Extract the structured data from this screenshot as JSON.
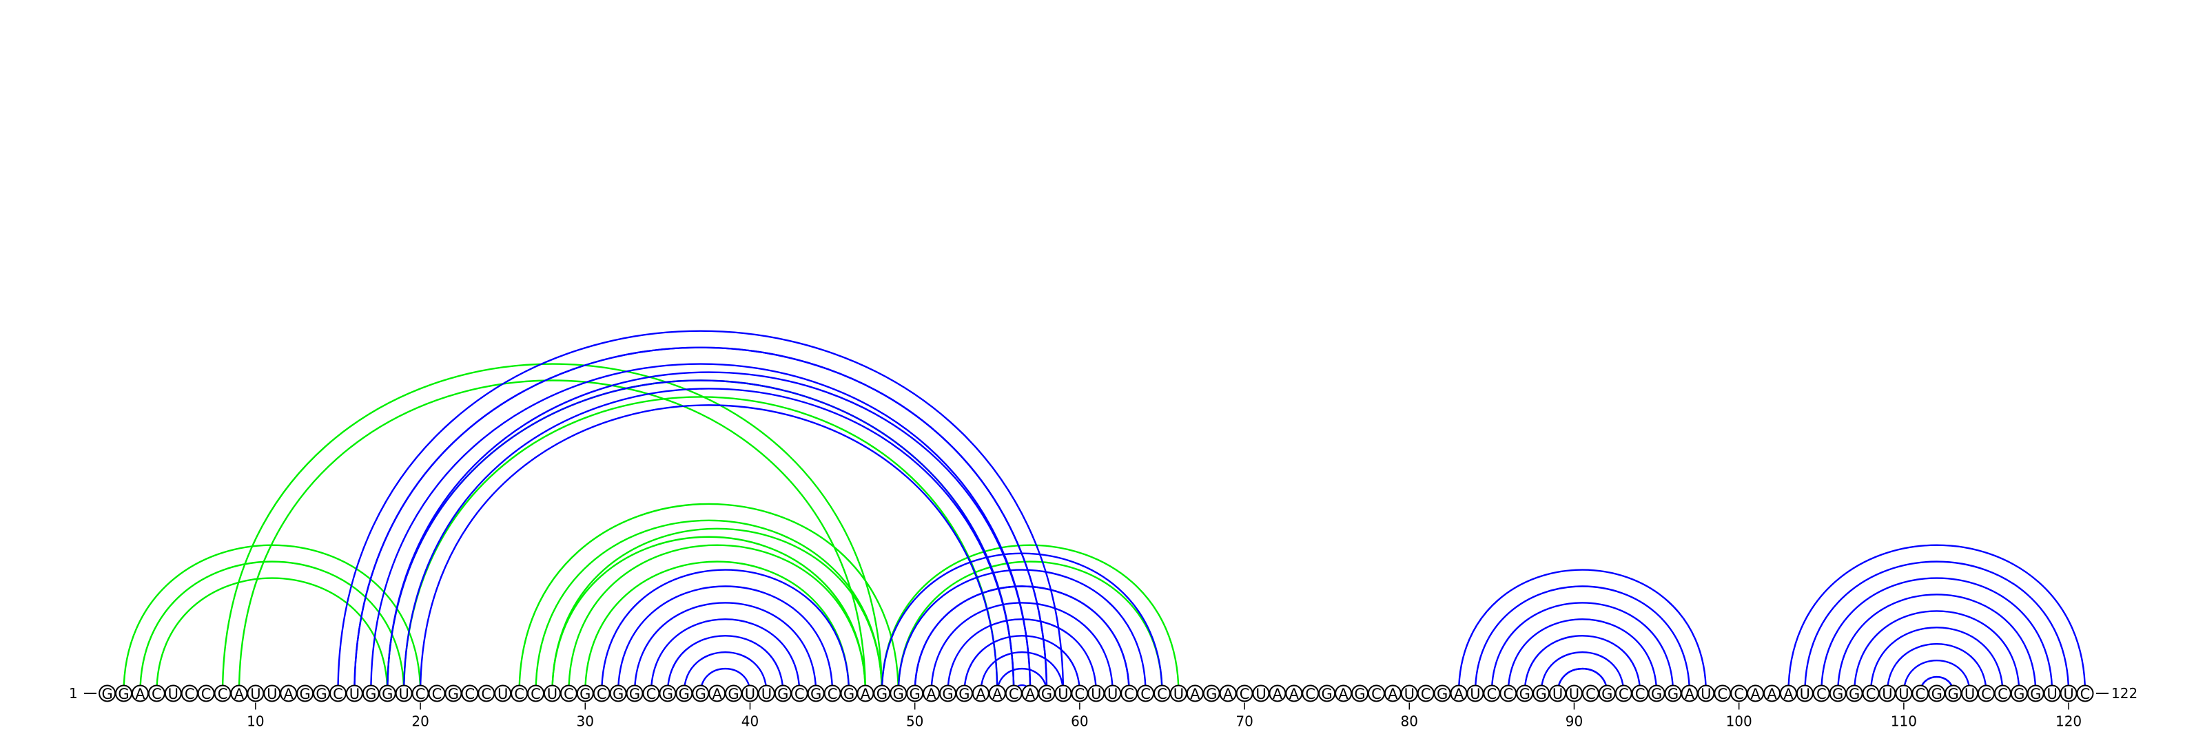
{
  "diagram": {
    "type": "rna-arc-diagram",
    "sequence": "GGACUCCCAUUAGGCUGGUCCGCCUCCUCGCGGCGGGAGUUGCGCGAGGGAGGAACAGUCUUCCCUAGACUAACGAGCAUCGAUCCGGUUCGCCGGAUCCAAAUCGGCUUCGGUCCGGUUC",
    "start_label": "1",
    "end_label": "122",
    "tick_labels": [
      "10",
      "20",
      "30",
      "40",
      "50",
      "60",
      "70",
      "80",
      "90",
      "100",
      "110",
      "120"
    ],
    "colors": {
      "structure_a": "#0000ff",
      "structure_b": "#00ee00"
    },
    "structure_a_helices": [
      {
        "i": 15,
        "j": 59,
        "n": 1
      },
      {
        "i": 16,
        "j": 58,
        "n": 2
      },
      {
        "i": 18,
        "j": 57,
        "n": 2
      },
      {
        "i": 31,
        "j": 46,
        "n": 6
      },
      {
        "i": 48,
        "j": 65,
        "n": 2
      },
      {
        "i": 50,
        "j": 63,
        "n": 5
      },
      {
        "i": 56,
        "j": 57,
        "n": 0
      },
      {
        "i": 83,
        "j": 98,
        "n": 6
      },
      {
        "i": 89,
        "j": 92,
        "n": 0
      },
      {
        "i": 103,
        "j": 121,
        "n": 1
      },
      {
        "i": 105,
        "j": 119,
        "n": 6
      },
      {
        "i": 111,
        "j": 113,
        "n": 0
      }
    ],
    "structure_b_helices": [
      {
        "i": 2,
        "j": 20,
        "n": 2
      },
      {
        "i": 8,
        "j": 48,
        "n": 1
      },
      {
        "i": 18,
        "j": 56,
        "n": 1
      },
      {
        "i": 26,
        "j": 49,
        "n": 2
      },
      {
        "i": 28,
        "j": 48,
        "n": 2
      },
      {
        "i": 48,
        "j": 66,
        "n": 1
      }
    ]
  }
}
